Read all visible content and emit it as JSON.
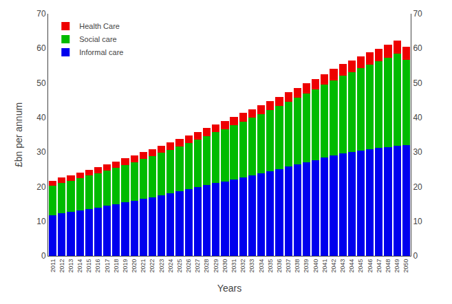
{
  "chart_data": {
    "type": "bar",
    "stacked": true,
    "categories": [
      "2011",
      "2012",
      "2013",
      "2014",
      "2015",
      "2016",
      "2017",
      "2018",
      "2019",
      "2020",
      "2021",
      "2022",
      "2023",
      "2024",
      "2025",
      "2026",
      "2027",
      "2028",
      "2029",
      "2030",
      "2031",
      "2032",
      "2033",
      "2034",
      "2035",
      "2036",
      "2037",
      "2038",
      "2039",
      "2040",
      "2041",
      "2042",
      "2043",
      "2044",
      "2045",
      "2046",
      "2047",
      "2048",
      "2049",
      "2050"
    ],
    "series": [
      {
        "name": "Informal care",
        "color": "#0000EE",
        "values": [
          11.8,
          12.3,
          12.7,
          13.1,
          13.6,
          14.0,
          14.5,
          15.0,
          15.5,
          16.0,
          16.5,
          17.0,
          17.6,
          18.1,
          18.7,
          19.2,
          19.8,
          20.4,
          21.0,
          21.5,
          22.1,
          22.7,
          23.3,
          23.9,
          24.5,
          25.1,
          25.8,
          26.4,
          27.1,
          27.7,
          28.4,
          29.1,
          29.7,
          30.1,
          30.5,
          30.9,
          31.2,
          31.5,
          31.8,
          32.1
        ]
      },
      {
        "name": "Social care",
        "color": "#00BB00",
        "values": [
          8.4,
          8.7,
          9.0,
          9.3,
          9.6,
          9.9,
          10.2,
          10.5,
          10.8,
          11.1,
          11.5,
          11.8,
          12.2,
          12.6,
          13.0,
          13.4,
          13.8,
          14.2,
          14.7,
          15.1,
          15.6,
          16.1,
          16.6,
          17.1,
          17.6,
          18.2,
          18.7,
          19.3,
          19.9,
          20.5,
          21.1,
          21.7,
          22.4,
          23.0,
          23.7,
          24.4,
          25.1,
          25.8,
          26.6,
          24.5
        ]
      },
      {
        "name": "Health Care",
        "color": "#EE0000",
        "values": [
          1.5,
          1.6,
          1.6,
          1.7,
          1.7,
          1.7,
          1.8,
          1.8,
          1.9,
          1.9,
          2.0,
          2.0,
          2.0,
          2.1,
          2.1,
          2.2,
          2.2,
          2.3,
          2.3,
          2.4,
          2.4,
          2.5,
          2.5,
          2.6,
          2.7,
          2.7,
          2.8,
          2.9,
          2.9,
          3.0,
          3.1,
          3.2,
          3.3,
          3.3,
          3.4,
          3.5,
          3.6,
          3.7,
          3.8,
          3.9
        ]
      }
    ],
    "xlabel": "Years",
    "ylabel": "£bn per annum",
    "ylim": [
      0,
      70
    ],
    "yticks": [
      0,
      10,
      20,
      30,
      40,
      50,
      60,
      70
    ],
    "y2lim": [
      0,
      70
    ],
    "y2ticks": [
      0,
      10,
      20,
      30,
      40,
      50,
      60,
      70
    ],
    "legend": "upper left",
    "grid": false
  }
}
